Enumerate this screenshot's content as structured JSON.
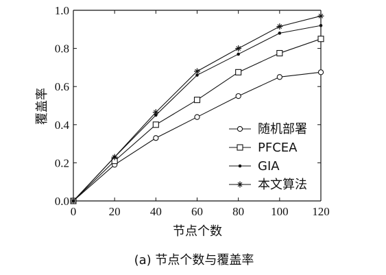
{
  "chart_data": {
    "type": "line",
    "xlabel": "节点个数",
    "ylabel": "覆盖率",
    "caption": "(a)  节点个数与覆盖率",
    "x": [
      0,
      20,
      40,
      60,
      80,
      100,
      120
    ],
    "xlim": [
      0,
      120
    ],
    "ylim": [
      0,
      1.0
    ],
    "xticks": [
      "0",
      "20",
      "40",
      "60",
      "80",
      "100",
      "120"
    ],
    "yticks": [
      "0.0",
      "0.2",
      "0.4",
      "0.6",
      "0.8",
      "1.0"
    ],
    "grid": false,
    "legend_position": "lower-right",
    "series": [
      {
        "name": "随机部署",
        "marker": "circle",
        "values": [
          0,
          0.19,
          0.33,
          0.44,
          0.55,
          0.65,
          0.675
        ]
      },
      {
        "name": "PFCEA",
        "marker": "square",
        "values": [
          0,
          0.21,
          0.4,
          0.53,
          0.675,
          0.775,
          0.85
        ]
      },
      {
        "name": "GIA",
        "marker": "dot",
        "values": [
          0,
          0.23,
          0.45,
          0.66,
          0.77,
          0.88,
          0.92
        ]
      },
      {
        "name": "本文算法",
        "marker": "star",
        "values": [
          0,
          0.23,
          0.465,
          0.68,
          0.8,
          0.915,
          0.97
        ]
      }
    ]
  }
}
